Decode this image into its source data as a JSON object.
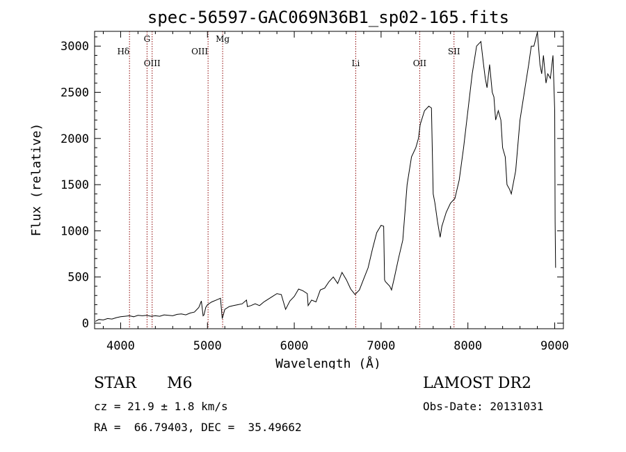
{
  "chart_data": {
    "type": "line",
    "title": "spec-56597-GAC069N36B1_sp02-165.fits",
    "xlabel": "Wavelength (Å)",
    "ylabel": "Flux (relative)",
    "xlim": [
      3700,
      9100
    ],
    "ylim": [
      -60,
      3160
    ],
    "xticks": [
      4000,
      5000,
      6000,
      7000,
      8000,
      9000
    ],
    "yticks": [
      0,
      500,
      1000,
      1500,
      2000,
      2500,
      3000
    ],
    "grid": false,
    "line_color": "#000000",
    "marker_color": "#8b0000",
    "lines": [
      {
        "label": "Hδ",
        "wavelength": 4102,
        "row": "upper"
      },
      {
        "label": "G",
        "wavelength": 4304,
        "row": "top"
      },
      {
        "label": "OIII",
        "wavelength": 4363,
        "row": "lower"
      },
      {
        "label": "OIII",
        "wavelength": 5007,
        "row": "upper"
      },
      {
        "label": "Mg",
        "wavelength": 5175,
        "row": "top"
      },
      {
        "label": "Li",
        "wavelength": 6708,
        "row": "lower"
      },
      {
        "label": "OII",
        "wavelength": 7445,
        "row": "lower"
      },
      {
        "label": "SII",
        "wavelength": 7840,
        "row": "upper"
      }
    ],
    "series": [
      {
        "x": [
          3710,
          3750,
          3800,
          3850,
          3900,
          3950,
          4000,
          4050,
          4100,
          4150,
          4200,
          4250,
          4300,
          4350,
          4400,
          4450,
          4500,
          4550,
          4600,
          4650,
          4700,
          4750,
          4800,
          4850,
          4900,
          4930,
          4950,
          4960,
          4980,
          5000,
          5050,
          5100,
          5150,
          5170,
          5180,
          5200,
          5250,
          5300,
          5350,
          5400,
          5450,
          5460,
          5500,
          5550,
          5600,
          5650,
          5700,
          5750,
          5800,
          5850,
          5900,
          5950,
          6000,
          6050,
          6100,
          6150,
          6160,
          6200,
          6250,
          6300,
          6350,
          6400,
          6450,
          6500,
          6550,
          6600,
          6650,
          6700,
          6750,
          6800,
          6850,
          6900,
          6950,
          7000,
          7030,
          7040,
          7050,
          7100,
          7120,
          7150,
          7200,
          7250,
          7300,
          7350,
          7400,
          7430,
          7450,
          7500,
          7550,
          7580,
          7600,
          7620,
          7650,
          7680,
          7700,
          7750,
          7800,
          7850,
          7900,
          7950,
          8000,
          8050,
          8100,
          8150,
          8180,
          8200,
          8220,
          8250,
          8280,
          8300,
          8320,
          8350,
          8380,
          8400,
          8430,
          8450,
          8480,
          8500,
          8550,
          8600,
          8650,
          8700,
          8730,
          8760,
          8800,
          8830,
          8850,
          8870,
          8900,
          8920,
          8950,
          8980,
          9000,
          9005,
          9010
        ],
        "y": [
          20,
          40,
          35,
          50,
          45,
          60,
          70,
          75,
          80,
          70,
          85,
          80,
          85,
          75,
          80,
          75,
          90,
          85,
          80,
          95,
          100,
          90,
          110,
          120,
          170,
          240,
          80,
          90,
          170,
          200,
          230,
          250,
          270,
          50,
          80,
          150,
          180,
          190,
          200,
          210,
          250,
          180,
          190,
          210,
          190,
          230,
          260,
          290,
          320,
          310,
          150,
          240,
          290,
          370,
          350,
          320,
          190,
          250,
          230,
          360,
          380,
          450,
          500,
          430,
          550,
          470,
          370,
          310,
          360,
          480,
          600,
          800,
          980,
          1060,
          1050,
          470,
          450,
          400,
          360,
          480,
          700,
          900,
          1500,
          1800,
          1900,
          2000,
          2150,
          2300,
          2350,
          2330,
          1400,
          1300,
          1100,
          930,
          1050,
          1200,
          1300,
          1350,
          1550,
          1900,
          2300,
          2700,
          3000,
          3050,
          2800,
          2650,
          2550,
          2800,
          2500,
          2450,
          2200,
          2300,
          2200,
          1900,
          1800,
          1500,
          1450,
          1400,
          1650,
          2200,
          2500,
          2800,
          3000,
          3000,
          3150,
          2800,
          2700,
          2900,
          2600,
          2700,
          2650,
          2900,
          2300,
          1100,
          600
        ]
      }
    ]
  },
  "footer": {
    "object_type": "STAR",
    "subclass": "M6",
    "survey": "LAMOST DR2",
    "redshift": "cz = 21.9 ± 1.8 km/s",
    "obs_date": "Obs-Date: 20131031",
    "coords": "RA =  66.79403, DEC =  35.49662"
  }
}
